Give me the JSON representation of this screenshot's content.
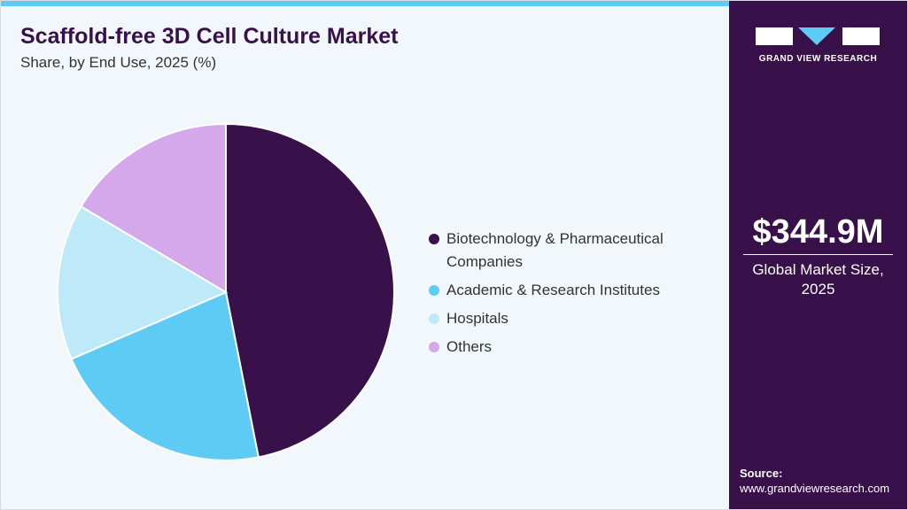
{
  "chart_data": {
    "type": "pie",
    "title": "Scaffold-free 3D Cell Culture Market",
    "subtitle": "Share, by End Use, 2025 (%)",
    "categories": [
      "Biotechnology & Pharmaceutical Companies",
      "Academic & Research Institutes",
      "Hospitals",
      "Others"
    ],
    "values": [
      46.9,
      21.6,
      15.0,
      16.5
    ],
    "colors": [
      "#38104a",
      "#5ecbf5",
      "#bde9f8",
      "#d4a8ea"
    ],
    "legend": "right"
  },
  "sidebar": {
    "brand": "GRAND VIEW RESEARCH",
    "market_size": "$344.9M",
    "market_size_label": "Global Market Size, 2025",
    "source_label": "Source:",
    "source_url": "www.grandviewresearch.com"
  }
}
